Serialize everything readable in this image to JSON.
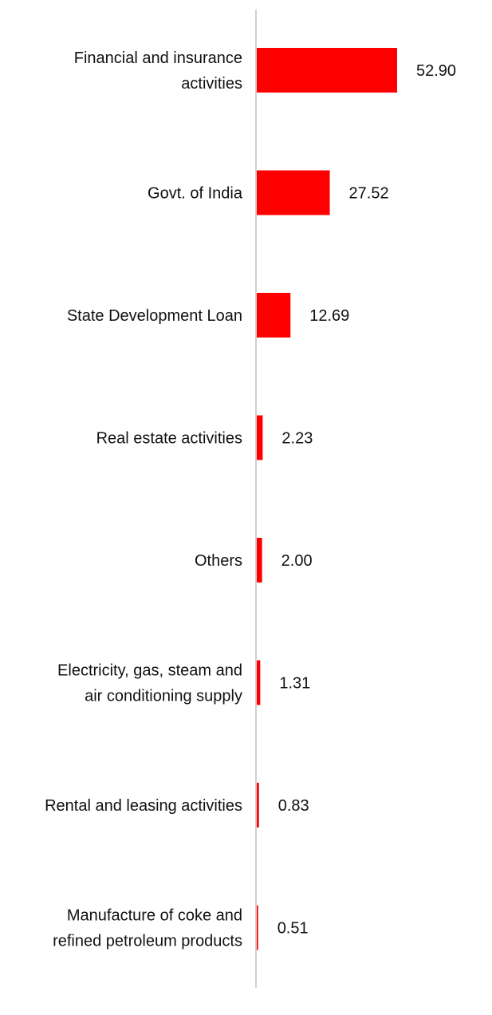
{
  "chart_data": {
    "type": "bar",
    "orientation": "horizontal",
    "categories": [
      [
        "Financial and insurance",
        "activities"
      ],
      [
        "Govt. of India"
      ],
      [
        "State Development Loan"
      ],
      [
        "Real estate activities"
      ],
      [
        "Others"
      ],
      [
        "Electricity, gas, steam and",
        "air conditioning supply"
      ],
      [
        "Rental and leasing activities"
      ],
      [
        "Manufacture of coke and",
        "refined petroleum products"
      ]
    ],
    "values": [
      52.9,
      27.52,
      12.69,
      2.23,
      2.0,
      1.31,
      0.83,
      0.51
    ],
    "value_labels": [
      "52.90",
      "27.52",
      "12.69",
      "2.23",
      "2.00",
      "1.31",
      "0.83",
      "0.51"
    ],
    "title": "",
    "xlabel": "",
    "ylabel": "",
    "xlim": [
      0,
      60
    ],
    "grid": false,
    "legend": "none",
    "bar_color": "#ff0000",
    "axis_color": "#d0d0d0",
    "text_color": "#111111"
  }
}
